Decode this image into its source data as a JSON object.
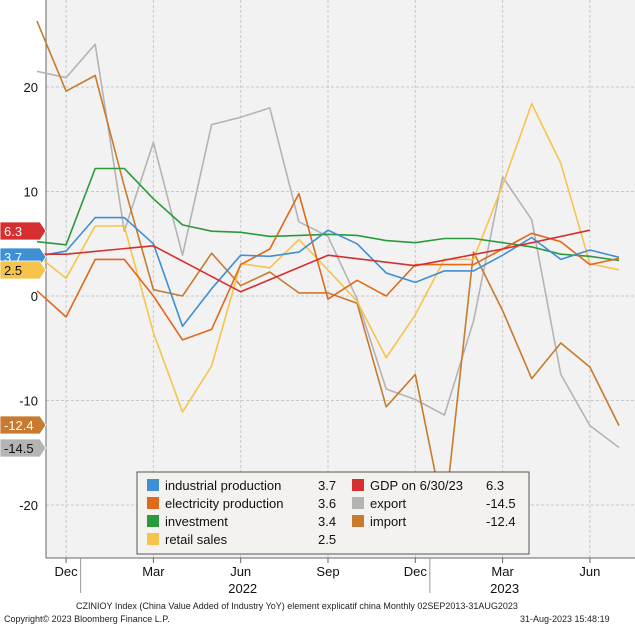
{
  "footer": {
    "title_line": "CZINIOY Index (China Value Added of Industry YoY) element explicatif china  Monthly 02SEP2013-31AUG2023",
    "copyright": "Copyright© 2023 Bloomberg Finance L.P.",
    "timestamp": "31-Aug-2023 15:48:19"
  },
  "chart_data": {
    "type": "line",
    "title": "",
    "xlabel": "",
    "ylabel": "",
    "x": [
      "2021-11",
      "2021-12",
      "2022-01",
      "2022-02",
      "2022-03",
      "2022-04",
      "2022-05",
      "2022-06",
      "2022-07",
      "2022-08",
      "2022-09",
      "2022-10",
      "2022-11",
      "2022-12",
      "2023-01",
      "2023-02",
      "2023-03",
      "2023-04",
      "2023-05",
      "2023-06",
      "2023-07"
    ],
    "x_tick_labels": [
      {
        "x": "2021-12",
        "label": "Dec"
      },
      {
        "x": "2022-03",
        "label": "Mar"
      },
      {
        "x": "2022-06",
        "label": "Jun"
      },
      {
        "x": "2022-09",
        "label": "Sep"
      },
      {
        "x": "2022-12",
        "label": "Dec"
      },
      {
        "x": "2023-03",
        "label": "Mar"
      },
      {
        "x": "2023-06",
        "label": "Jun"
      }
    ],
    "year_labels": [
      {
        "x": "2022-06",
        "label": "2022"
      },
      {
        "x": "2023-03",
        "label": "2023"
      }
    ],
    "y_ticks": [
      20,
      10,
      0,
      -10,
      -20
    ],
    "ylim": [
      -25,
      28
    ],
    "grid": true,
    "legend_position": "bottom-center",
    "series": [
      {
        "name": "industrial production",
        "legend_value": "3.7",
        "color": "#3f8fd4",
        "values": [
          3.8,
          4.3,
          7.5,
          7.5,
          5.0,
          -2.9,
          0.7,
          3.9,
          3.8,
          4.2,
          6.3,
          5.0,
          2.2,
          1.3,
          2.4,
          2.4,
          3.9,
          5.6,
          3.5,
          4.4,
          3.7
        ]
      },
      {
        "name": "electricity production",
        "legend_value": "3.6",
        "color": "#e0691a",
        "values": [
          0.5,
          -2.0,
          3.5,
          3.5,
          0.0,
          -4.2,
          -3.2,
          3.0,
          4.5,
          9.8,
          -0.3,
          1.5,
          0.0,
          3.0,
          3.0,
          3.0,
          4.5,
          6.0,
          5.2,
          3.0,
          3.6
        ]
      },
      {
        "name": "investment",
        "legend_value": "3.4",
        "color": "#2b9a3a",
        "values": [
          5.2,
          4.9,
          12.2,
          12.2,
          9.3,
          6.8,
          6.2,
          6.1,
          5.7,
          5.8,
          5.9,
          5.8,
          5.3,
          5.1,
          5.5,
          5.5,
          5.1,
          4.7,
          4.0,
          3.8,
          3.4
        ]
      },
      {
        "name": "retail sales",
        "legend_value": "2.5",
        "color": "#f6c44a",
        "values": [
          3.9,
          1.7,
          6.7,
          6.7,
          -3.5,
          -11.1,
          -6.7,
          3.1,
          2.7,
          5.4,
          2.5,
          -0.5,
          -5.9,
          -1.8,
          3.5,
          3.5,
          10.6,
          18.4,
          12.7,
          3.1,
          2.5
        ]
      },
      {
        "name": "GDP on 6/30/23",
        "legend_value": "6.3",
        "color": "#d62f2f",
        "values": [
          4.0,
          4.0,
          null,
          null,
          4.8,
          null,
          null,
          0.4,
          null,
          null,
          3.9,
          null,
          null,
          2.9,
          null,
          null,
          4.5,
          null,
          null,
          6.3,
          null
        ]
      },
      {
        "name": "export",
        "legend_value": "-14.5",
        "color": "#b4b4b4",
        "values": [
          21.5,
          20.9,
          24.1,
          6.2,
          14.7,
          3.9,
          16.4,
          17.1,
          18.0,
          7.1,
          5.7,
          -0.3,
          -8.9,
          -9.9,
          -11.4,
          -2.4,
          11.4,
          7.3,
          -7.5,
          -12.4,
          -14.5
        ]
      },
      {
        "name": "import",
        "legend_value": "-12.4",
        "color": "#c87a2e",
        "values": [
          26.3,
          19.6,
          21.1,
          10.5,
          0.6,
          0.0,
          4.1,
          1.0,
          2.3,
          0.3,
          0.3,
          -0.7,
          -10.6,
          -7.5,
          -21.3,
          4.2,
          -1.4,
          -7.9,
          -4.5,
          -6.8,
          -12.4
        ]
      }
    ],
    "right_tags": [
      {
        "label": "6.3",
        "value": 6.3,
        "color": "#d62f2f",
        "text_color": "#ffffff"
      },
      {
        "label": "3.7",
        "value": 3.7,
        "color": "#3f8fd4",
        "text_color": "#ffffff"
      },
      {
        "label": "2.5",
        "value": 2.5,
        "color": "#f6c44a",
        "text_color": "#111111"
      },
      {
        "label": "-12.4",
        "value": -12.4,
        "color": "#c87a2e",
        "text_color": "#ffffff"
      },
      {
        "label": "-14.5",
        "value": -14.5,
        "color": "#b4b4b4",
        "text_color": "#111111"
      }
    ],
    "legend": {
      "columns": [
        [
          "industrial production",
          "electricity production",
          "investment",
          "retail sales"
        ],
        [
          "GDP on 6/30/23",
          "export",
          "import"
        ]
      ]
    }
  }
}
